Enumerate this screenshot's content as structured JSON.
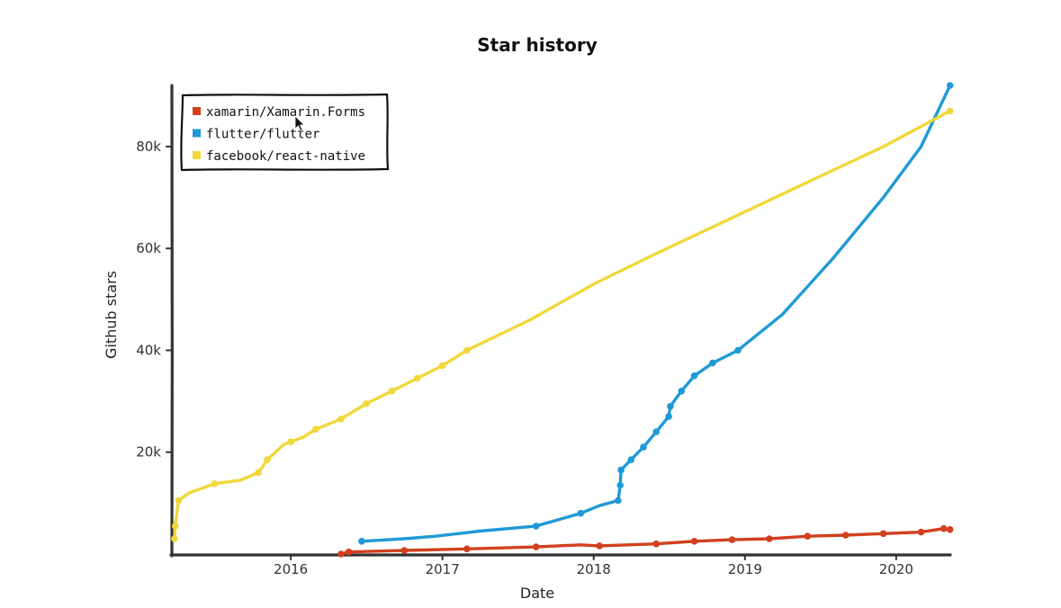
{
  "chart_data": {
    "type": "line",
    "title": "Star history",
    "xlabel": "Date",
    "ylabel": "Github stars",
    "xlim": [
      "2015-03-20",
      "2020-05-15"
    ],
    "ylim": [
      0,
      92000
    ],
    "x_ticks": [
      "2016",
      "2017",
      "2018",
      "2019",
      "2020"
    ],
    "y_ticks": [
      {
        "value": 20000,
        "label": "20k"
      },
      {
        "value": 40000,
        "label": "40k"
      },
      {
        "value": 60000,
        "label": "60k"
      },
      {
        "value": 80000,
        "label": "80k"
      }
    ],
    "grid": false,
    "legend_position": "top-left",
    "series": [
      {
        "name": "xamarin/Xamarin.Forms",
        "color": "#d2401f",
        "points": [
          [
            "2016-05-01",
            0
          ],
          [
            "2016-05-20",
            400
          ],
          [
            "2016-08-15",
            600
          ],
          [
            "2016-10-01",
            700
          ],
          [
            "2017-03-01",
            1000
          ],
          [
            "2017-08-15",
            1400
          ],
          [
            "2017-12-01",
            1800
          ],
          [
            "2018-01-15",
            1600
          ],
          [
            "2018-06-01",
            2000
          ],
          [
            "2018-09-01",
            2500
          ],
          [
            "2018-12-01",
            2800
          ],
          [
            "2019-03-01",
            3000
          ],
          [
            "2019-06-01",
            3500
          ],
          [
            "2019-09-01",
            3700
          ],
          [
            "2019-12-01",
            4000
          ],
          [
            "2020-03-01",
            4300
          ],
          [
            "2020-04-25",
            5000
          ],
          [
            "2020-05-10",
            4800
          ]
        ],
        "markers": [
          "2016-05-01",
          "2016-05-20",
          "2016-10-01",
          "2017-03-01",
          "2017-08-15",
          "2018-01-15",
          "2018-06-01",
          "2018-09-01",
          "2018-12-01",
          "2019-03-01",
          "2019-06-01",
          "2019-09-01",
          "2019-12-01",
          "2020-03-01",
          "2020-04-25",
          "2020-05-10"
        ]
      },
      {
        "name": "flutter/flutter",
        "color": "#1f9ad6",
        "points": [
          [
            "2016-06-20",
            2500
          ],
          [
            "2016-08-01",
            2700
          ],
          [
            "2016-10-01",
            3000
          ],
          [
            "2016-12-15",
            3500
          ],
          [
            "2017-04-01",
            4500
          ],
          [
            "2017-08-15",
            5500
          ],
          [
            "2017-12-01",
            8000
          ],
          [
            "2018-01-15",
            9500
          ],
          [
            "2018-03-01",
            10500
          ],
          [
            "2018-03-06",
            13500
          ],
          [
            "2018-03-08",
            16500
          ],
          [
            "2018-04-01",
            18500
          ],
          [
            "2018-05-01",
            21000
          ],
          [
            "2018-06-01",
            24000
          ],
          [
            "2018-07-01",
            27000
          ],
          [
            "2018-07-05",
            29000
          ],
          [
            "2018-08-01",
            32000
          ],
          [
            "2018-09-01",
            35000
          ],
          [
            "2018-10-15",
            37500
          ],
          [
            "2018-12-15",
            40000
          ],
          [
            "2019-04-01",
            47000
          ],
          [
            "2019-08-01",
            58000
          ],
          [
            "2019-12-01",
            70000
          ],
          [
            "2020-03-01",
            80000
          ],
          [
            "2020-05-10",
            92000
          ]
        ],
        "markers": [
          "2016-06-20",
          "2017-08-15",
          "2017-12-01",
          "2018-03-01",
          "2018-03-06",
          "2018-03-08",
          "2018-04-01",
          "2018-05-01",
          "2018-06-01",
          "2018-07-01",
          "2018-07-05",
          "2018-08-01",
          "2018-09-01",
          "2018-10-15",
          "2018-12-15",
          "2020-05-10"
        ]
      },
      {
        "name": "facebook/react-native",
        "color": "#f0d83a",
        "points": [
          [
            "2015-03-26",
            3000
          ],
          [
            "2015-03-28",
            5500
          ],
          [
            "2015-04-01",
            8000
          ],
          [
            "2015-04-05",
            10500
          ],
          [
            "2015-05-01",
            12000
          ],
          [
            "2015-07-01",
            13800
          ],
          [
            "2015-09-01",
            14500
          ],
          [
            "2015-10-15",
            16000
          ],
          [
            "2015-11-05",
            18500
          ],
          [
            "2015-12-15",
            21500
          ],
          [
            "2016-02-01",
            23000
          ],
          [
            "2016-03-01",
            24500
          ],
          [
            "2016-05-01",
            26500
          ],
          [
            "2016-07-01",
            29500
          ],
          [
            "2016-09-01",
            32000
          ],
          [
            "2016-11-01",
            34500
          ],
          [
            "2017-01-01",
            37000
          ],
          [
            "2017-03-01",
            40000
          ],
          [
            "2017-08-01",
            46000
          ],
          [
            "2018-01-01",
            53000
          ],
          [
            "2018-06-01",
            59000
          ],
          [
            "2018-12-01",
            66000
          ],
          [
            "2019-06-01",
            73000
          ],
          [
            "2019-12-01",
            80000
          ],
          [
            "2020-05-10",
            87000
          ]
        ],
        "markers": [
          "2015-03-26",
          "2015-03-28",
          "2015-04-05",
          "2015-07-01",
          "2015-10-15",
          "2015-11-05",
          "2016-01-01",
          "2016-03-01",
          "2016-05-01",
          "2016-07-01",
          "2016-09-01",
          "2016-11-01",
          "2017-01-01",
          "2017-03-01",
          "2020-05-10"
        ]
      }
    ]
  }
}
